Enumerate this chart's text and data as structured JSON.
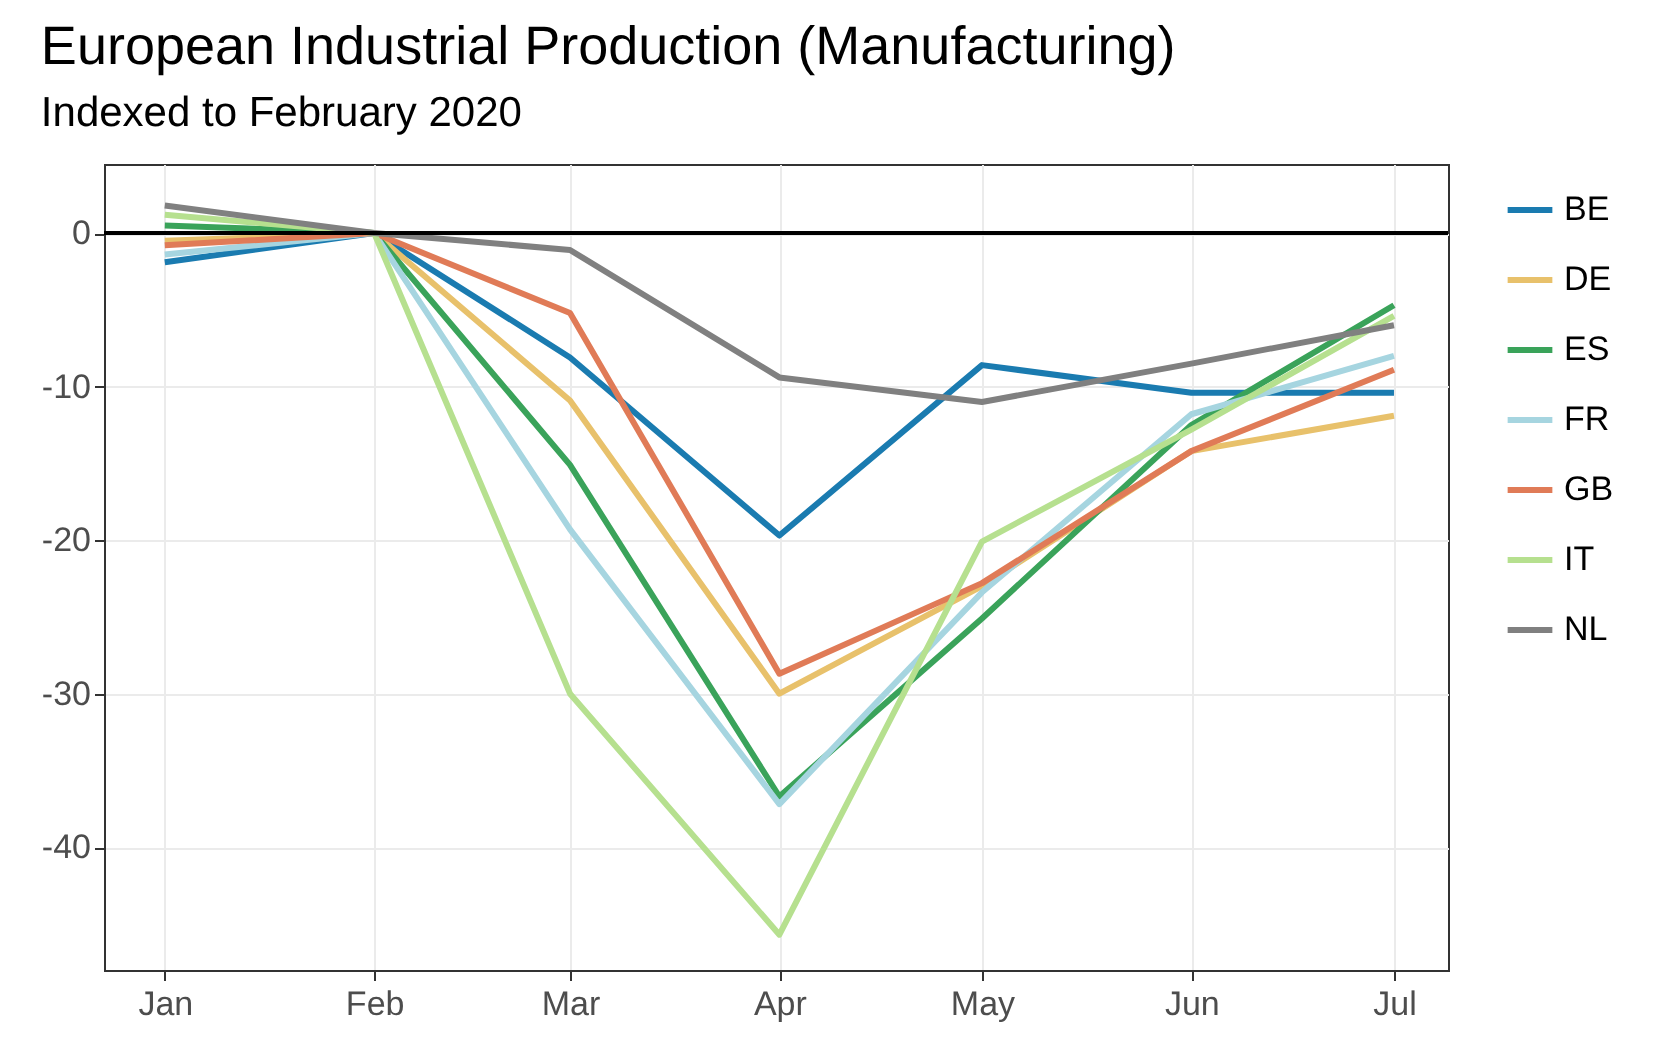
{
  "chart_data": {
    "type": "line",
    "title": "European Industrial Production (Manufacturing)",
    "subtitle": "Indexed to February 2020",
    "x": [
      "2020-01",
      "2020-02",
      "2020-03",
      "2020-04",
      "2020-05",
      "2020-06",
      "2020-07"
    ],
    "series": [
      {
        "name": "BE",
        "color": "#1a7bb0",
        "values": [
          -1.9,
          0,
          -8.1,
          -19.7,
          -8.6,
          -10.4,
          -10.4
        ]
      },
      {
        "name": "DE",
        "color": "#e8c16b",
        "values": [
          -0.5,
          0,
          -10.9,
          -30.0,
          -23.0,
          -14.2,
          -11.9
        ]
      },
      {
        "name": "ES",
        "color": "#3aa35a",
        "values": [
          0.5,
          0,
          -15.1,
          -36.7,
          -25.1,
          -12.5,
          -4.7
        ]
      },
      {
        "name": "FR",
        "color": "#a6d5e0",
        "values": [
          -1.4,
          0,
          -19.3,
          -37.2,
          -23.4,
          -11.8,
          -8.0
        ]
      },
      {
        "name": "GB",
        "color": "#e07b57",
        "values": [
          -0.8,
          0,
          -5.2,
          -28.7,
          -22.8,
          -14.2,
          -8.9
        ]
      },
      {
        "name": "IT",
        "color": "#b6e08f",
        "values": [
          1.2,
          0,
          -30.0,
          -45.7,
          -20.1,
          -12.8,
          -5.4
        ]
      },
      {
        "name": "NL",
        "color": "#808080",
        "values": [
          1.8,
          0,
          -1.1,
          -9.4,
          -11.0,
          -8.5,
          -6.0
        ]
      }
    ],
    "xlim": [
      "2019-12-23",
      "2020-07-09"
    ],
    "xticks": [
      {
        "value": "2020-01",
        "label": "Jan"
      },
      {
        "value": "2020-02",
        "label": "Feb"
      },
      {
        "value": "2020-03",
        "label": "Mar"
      },
      {
        "value": "2020-04",
        "label": "Apr"
      },
      {
        "value": "2020-05",
        "label": "May"
      },
      {
        "value": "2020-06",
        "label": "Jun"
      },
      {
        "value": "2020-07",
        "label": "Jul"
      }
    ],
    "ylim": [
      -48,
      4.5
    ],
    "yticks": [
      -40,
      -30,
      -20,
      -10,
      0
    ],
    "ref_lines": [
      {
        "axis": "y",
        "value": 0,
        "color": "#000000"
      }
    ],
    "grid": true,
    "legend": "right",
    "marker": "none",
    "line_style": "solid"
  }
}
